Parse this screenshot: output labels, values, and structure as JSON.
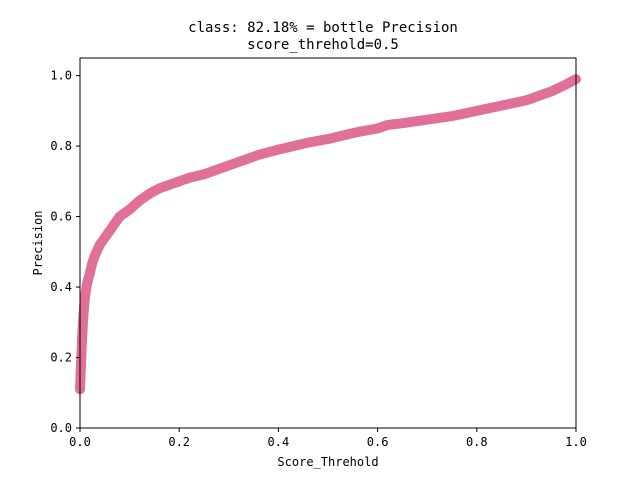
{
  "chart_data": {
    "type": "scatter",
    "title": "class: 82.18% = bottle Precision",
    "subtitle": "score_threhold=0.5",
    "xlabel": "Score_Threhold",
    "ylabel": "Precision",
    "xlim": [
      0.0,
      1.0
    ],
    "ylim": [
      0.0,
      1.05
    ],
    "xticks": [
      "0.0",
      "0.2",
      "0.4",
      "0.6",
      "0.8",
      "1.0"
    ],
    "yticks": [
      "0.0",
      "0.2",
      "0.4",
      "0.6",
      "0.8",
      "1.0"
    ],
    "grid": false,
    "legend": "none",
    "series": [
      {
        "color": "#e07098",
        "x": [
          0.0,
          0.002,
          0.004,
          0.006,
          0.008,
          0.01,
          0.013,
          0.016,
          0.02,
          0.025,
          0.03,
          0.04,
          0.05,
          0.06,
          0.07,
          0.08,
          0.09,
          0.1,
          0.12,
          0.14,
          0.16,
          0.18,
          0.2,
          0.22,
          0.25,
          0.28,
          0.3,
          0.33,
          0.36,
          0.4,
          0.43,
          0.46,
          0.5,
          0.53,
          0.56,
          0.6,
          0.62,
          0.65,
          0.7,
          0.75,
          0.8,
          0.85,
          0.9,
          0.95,
          0.98,
          1.0
        ],
        "y": [
          0.11,
          0.18,
          0.25,
          0.3,
          0.34,
          0.37,
          0.4,
          0.42,
          0.44,
          0.47,
          0.49,
          0.52,
          0.54,
          0.56,
          0.58,
          0.6,
          0.61,
          0.62,
          0.645,
          0.665,
          0.68,
          0.69,
          0.7,
          0.71,
          0.72,
          0.735,
          0.745,
          0.76,
          0.775,
          0.79,
          0.8,
          0.81,
          0.82,
          0.83,
          0.84,
          0.85,
          0.86,
          0.865,
          0.875,
          0.885,
          0.9,
          0.915,
          0.93,
          0.955,
          0.975,
          0.99
        ]
      }
    ]
  }
}
